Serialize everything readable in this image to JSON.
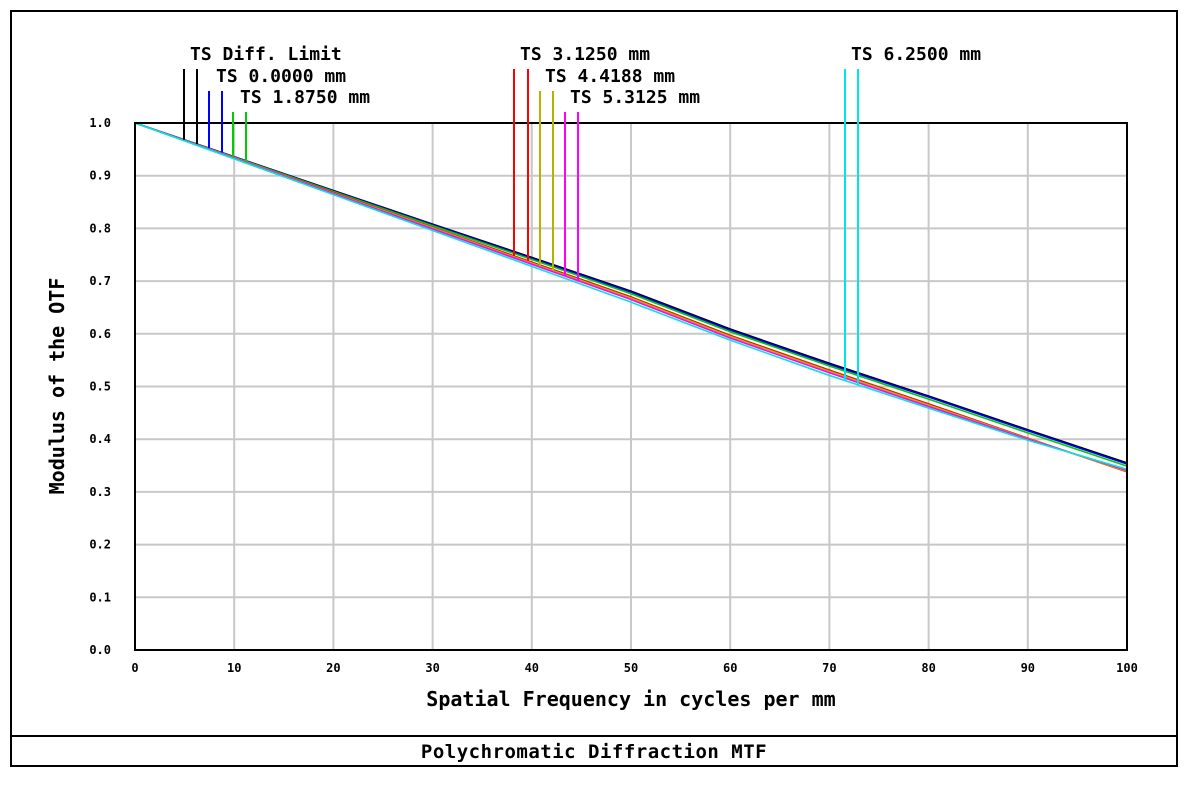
{
  "chart_data": {
    "type": "line",
    "title": "Polychromatic Diffraction MTF",
    "xlabel": "Spatial Frequency in cycles per mm",
    "ylabel": "Modulus of the OTF",
    "xlim": [
      0,
      100
    ],
    "ylim": [
      0,
      1.0
    ],
    "x_ticks": [
      "0",
      "10",
      "20",
      "30",
      "40",
      "50",
      "60",
      "70",
      "80",
      "90",
      "100"
    ],
    "y_ticks": [
      "0.0",
      "0.1",
      "0.2",
      "0.3",
      "0.4",
      "0.5",
      "0.6",
      "0.7",
      "0.8",
      "0.9",
      "1.0"
    ],
    "grid": true,
    "legend_position": "top",
    "series": [
      {
        "name": "TS Diff. Limit",
        "color": "#000000",
        "x": [
          0,
          10,
          20,
          30,
          40,
          50,
          60,
          70,
          80,
          90,
          100
        ],
        "values": [
          1.0,
          0.936,
          0.872,
          0.808,
          0.745,
          0.681,
          0.609,
          0.544,
          0.482,
          0.418,
          0.355
        ]
      },
      {
        "name": "TS 0.0000 mm",
        "color": "#0000ff",
        "x": [
          0,
          10,
          20,
          30,
          40,
          50,
          60,
          70,
          80,
          90,
          100
        ],
        "values": [
          1.0,
          0.936,
          0.871,
          0.807,
          0.743,
          0.679,
          0.607,
          0.542,
          0.48,
          0.416,
          0.353
        ]
      },
      {
        "name": "TS 1.8750 mm",
        "color": "#00cc00",
        "x": [
          0,
          10,
          20,
          30,
          40,
          50,
          60,
          70,
          80,
          90,
          100
        ],
        "values": [
          1.0,
          0.935,
          0.87,
          0.805,
          0.741,
          0.676,
          0.604,
          0.539,
          0.476,
          0.412,
          0.349
        ]
      },
      {
        "name": "TS 3.1250 mm",
        "color": "#ff0000",
        "x": [
          0,
          10,
          20,
          30,
          40,
          50,
          60,
          70,
          80,
          90,
          100
        ],
        "values": [
          1.0,
          0.934,
          0.868,
          0.802,
          0.736,
          0.67,
          0.597,
          0.531,
          0.467,
          0.402,
          0.338
        ]
      },
      {
        "name": "TS 4.4188 mm",
        "color": "#b3b300",
        "x": [
          0,
          10,
          20,
          30,
          40,
          50,
          60,
          70,
          80,
          90,
          100
        ],
        "values": [
          1.0,
          0.934,
          0.867,
          0.801,
          0.734,
          0.668,
          0.595,
          0.529,
          0.465,
          0.401,
          0.339
        ]
      },
      {
        "name": "TS 5.3125 mm",
        "color": "#ff00ff",
        "x": [
          0,
          10,
          20,
          30,
          40,
          50,
          60,
          70,
          80,
          90,
          100
        ],
        "values": [
          1.0,
          0.933,
          0.866,
          0.799,
          0.732,
          0.665,
          0.592,
          0.526,
          0.462,
          0.4,
          0.341
        ]
      },
      {
        "name": "TS 6.2500 mm",
        "color": "#00e5e5",
        "x": [
          0,
          10,
          20,
          30,
          40,
          50,
          60,
          70,
          80,
          90,
          100
        ],
        "values": [
          1.0,
          0.932,
          0.864,
          0.796,
          0.728,
          0.66,
          0.588,
          0.521,
          0.459,
          0.398,
          0.343
        ]
      }
    ]
  }
}
